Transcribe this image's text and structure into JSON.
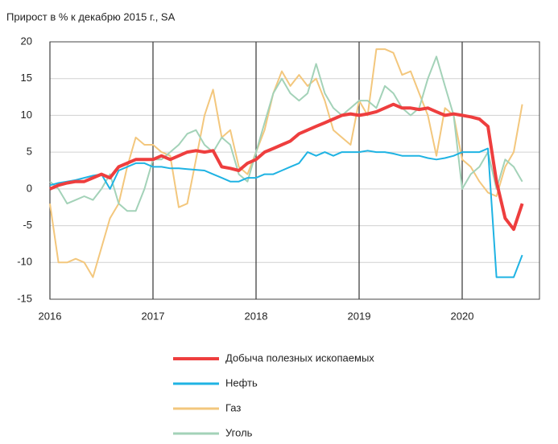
{
  "chart_data": {
    "type": "line",
    "title": "Прирост в % к декабрю 2015 г., SA",
    "x": [
      2016,
      2016.083,
      2016.167,
      2016.25,
      2016.333,
      2016.417,
      2016.5,
      2016.583,
      2016.667,
      2016.75,
      2016.833,
      2016.917,
      2017,
      2017.083,
      2017.167,
      2017.25,
      2017.333,
      2017.417,
      2017.5,
      2017.583,
      2017.667,
      2017.75,
      2017.833,
      2017.917,
      2018,
      2018.083,
      2018.167,
      2018.25,
      2018.333,
      2018.417,
      2018.5,
      2018.583,
      2018.667,
      2018.75,
      2018.833,
      2018.917,
      2019,
      2019.083,
      2019.167,
      2019.25,
      2019.333,
      2019.417,
      2019.5,
      2019.583,
      2019.667,
      2019.75,
      2019.833,
      2019.917,
      2020,
      2020.083,
      2020.167,
      2020.25,
      2020.333,
      2020.417,
      2020.5,
      2020.583
    ],
    "series": [
      {
        "name": "Газ",
        "color": "#f3c77d",
        "values": [
          -2,
          -10,
          -10,
          -9.5,
          -10,
          -12,
          -8,
          -4,
          -2,
          3,
          7,
          6,
          6,
          5,
          4.5,
          -2.5,
          -2,
          4,
          10,
          13.5,
          7,
          8,
          3,
          2,
          5,
          8,
          13,
          16,
          14,
          15.5,
          14,
          15,
          12,
          8,
          7,
          6,
          12,
          10,
          19,
          19,
          18.5,
          15.5,
          16,
          13,
          10,
          4.5,
          11,
          10,
          4,
          3,
          1,
          -0.5,
          -1,
          3,
          5,
          11.5
        ]
      },
      {
        "name": "Уголь",
        "color": "#a3d2b8",
        "values": [
          1,
          0,
          -2,
          -1.5,
          -1,
          -1.5,
          0,
          2,
          -2,
          -3,
          -3,
          0,
          4,
          4,
          5,
          6,
          7.5,
          8,
          6,
          5,
          7,
          6,
          2,
          1,
          5,
          9,
          13,
          15,
          13,
          12,
          13,
          17,
          13,
          11,
          10,
          11,
          12,
          12,
          11,
          14,
          13,
          11,
          10,
          11,
          15,
          18,
          14,
          10,
          0,
          2,
          3,
          5,
          0,
          4,
          3,
          1
        ]
      },
      {
        "name": "Нефть",
        "color": "#1fb3e3",
        "values": [
          0.5,
          0.8,
          1,
          1.2,
          1.5,
          1.8,
          2,
          0,
          2.5,
          3,
          3.5,
          3.5,
          3,
          3,
          2.8,
          2.8,
          2.7,
          2.6,
          2.5,
          2,
          1.5,
          1,
          1,
          1.5,
          1.5,
          2,
          2,
          2.5,
          3,
          3.5,
          5,
          4.5,
          5,
          4.5,
          5,
          5,
          5,
          5.2,
          5,
          5,
          4.8,
          4.5,
          4.5,
          4.5,
          4.2,
          4,
          4.2,
          4.5,
          5,
          5,
          5,
          5.5,
          -12,
          -12,
          -12,
          -9
        ]
      },
      {
        "name": "Добыча полезных ископаемых",
        "color": "#ee3e3e",
        "width": 4,
        "values": [
          0,
          0.5,
          0.8,
          1,
          1,
          1.5,
          2,
          1.5,
          3,
          3.5,
          4,
          4,
          4,
          4.5,
          4,
          4.5,
          5,
          5.2,
          5,
          5.2,
          3,
          2.8,
          2.5,
          3.5,
          4,
          5,
          5.5,
          6,
          6.5,
          7.5,
          8,
          8.5,
          9,
          9.5,
          10,
          10.2,
          10,
          10.2,
          10.5,
          11,
          11.5,
          11,
          11,
          10.8,
          11,
          10.5,
          10,
          10.2,
          10,
          9.8,
          9.5,
          8.5,
          1,
          -4,
          -5.5,
          -2
        ]
      }
    ],
    "legend_order": [
      3,
      2,
      0,
      1
    ],
    "xlim": [
      2016,
      2020.75
    ],
    "xticks": [
      2016,
      2017,
      2018,
      2019,
      2020
    ],
    "ylim": [
      -15,
      20
    ],
    "yticks": [
      -15,
      -10,
      -5,
      0,
      5,
      10,
      15,
      20
    ],
    "grid": true
  }
}
